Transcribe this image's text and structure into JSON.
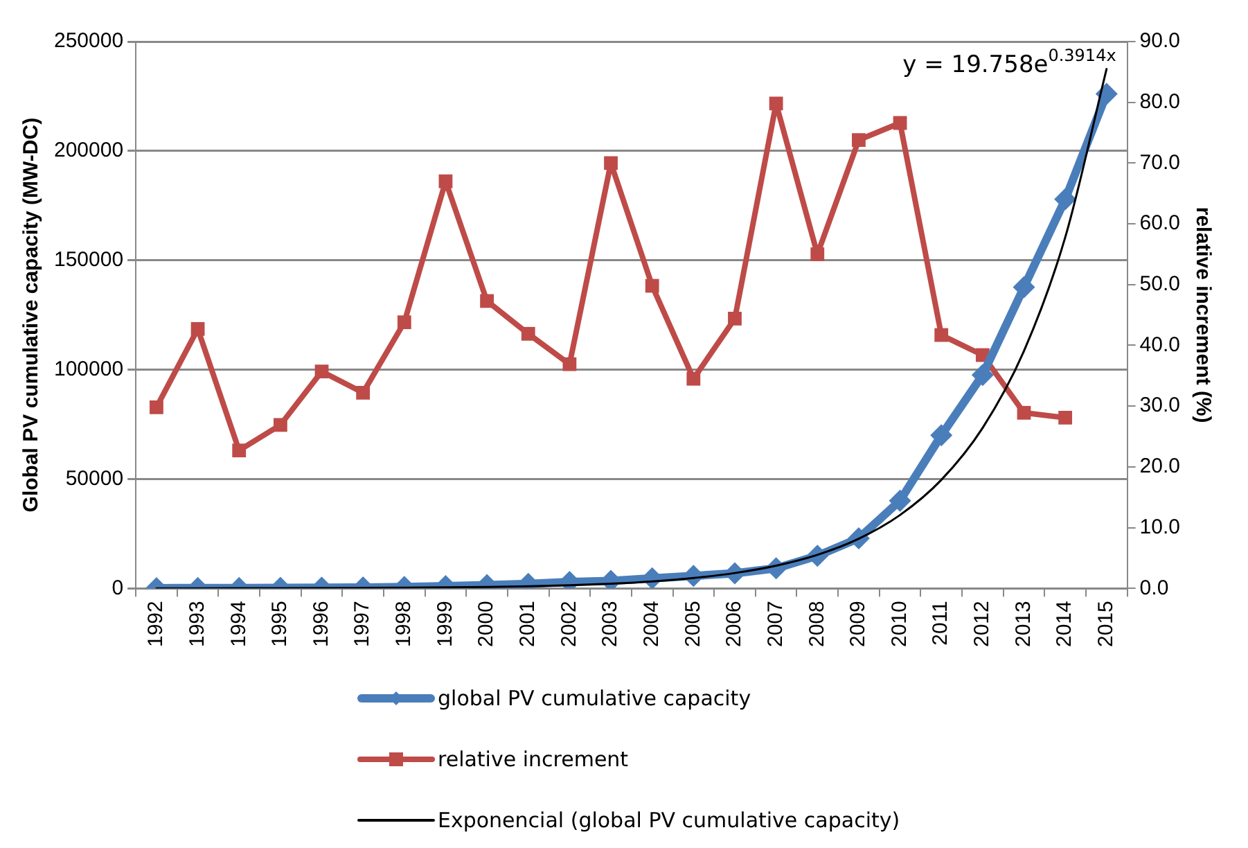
{
  "chart_data": {
    "type": "line",
    "categories": [
      "1992",
      "1993",
      "1994",
      "1995",
      "1996",
      "1997",
      "1998",
      "1999",
      "2000",
      "2001",
      "2002",
      "2003",
      "2004",
      "2005",
      "2006",
      "2007",
      "2008",
      "2009",
      "2010",
      "2011",
      "2012",
      "2013",
      "2014",
      "2015"
    ],
    "series": [
      {
        "name": "global PV cumulative capacity",
        "color": "#4a7ebb",
        "marker": "diamond",
        "values": [
          100,
          150,
          190,
          240,
          320,
          420,
          600,
          1000,
          1500,
          2100,
          2900,
          3400,
          4600,
          5700,
          6900,
          9200,
          14900,
          22900,
          40100,
          70000,
          97600,
          137700,
          177900,
          226100
        ]
      },
      {
        "name": "relative increment",
        "color": "#be4b48",
        "marker": "square",
        "axis": "y2",
        "values": [
          29.8,
          42.7,
          22.7,
          26.9,
          35.7,
          32.2,
          43.8,
          67.0,
          47.3,
          41.9,
          36.9,
          70.0,
          49.8,
          34.5,
          44.4,
          79.8,
          55.0,
          73.8,
          76.6,
          41.7,
          38.4,
          28.9,
          28.1,
          null
        ]
      },
      {
        "name": "Exponencial (global PV cumulative capacity)",
        "color": "#000000",
        "marker": "none",
        "values": [
          29,
          43,
          64,
          95,
          140,
          207,
          306,
          452,
          669,
          990,
          1464,
          2165,
          3203,
          4738,
          7008,
          10365,
          15330,
          22676,
          33541,
          49612,
          73381,
          108531,
          160534,
          237452
        ]
      }
    ],
    "ylabel": "Global PV cumulative capacity (MW-DC)",
    "y2label": "relative increment (%)",
    "ylim": [
      0,
      250000
    ],
    "yticks": [
      0,
      50000,
      100000,
      150000,
      200000,
      250000
    ],
    "y2lim": [
      0,
      90
    ],
    "y2ticks": [
      {
        "value": 0,
        "label": "0.0"
      },
      {
        "value": 10,
        "label": "10.0"
      },
      {
        "value": 20,
        "label": "20.0"
      },
      {
        "value": 30,
        "label": "30.0"
      },
      {
        "value": 40,
        "label": "40.0"
      },
      {
        "value": 50,
        "label": "50.0"
      },
      {
        "value": 60,
        "label": "60.0"
      },
      {
        "value": 70,
        "label": "70.0"
      },
      {
        "value": 80,
        "label": "80.0"
      },
      {
        "value": 90,
        "label": "90.0"
      }
    ],
    "annotations": [
      "y = 19.758e$^{0.3914x}$"
    ],
    "grid": "y",
    "legend": "bottom"
  }
}
